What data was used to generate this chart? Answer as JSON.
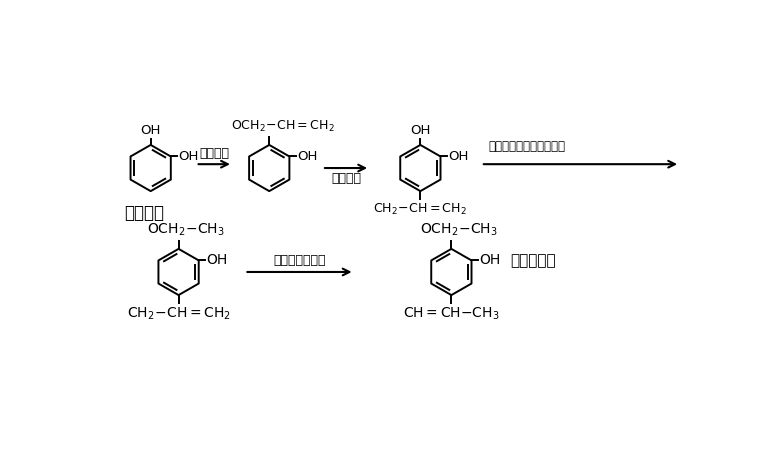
{
  "bg_color": "#ffffff",
  "text_color": "#000000",
  "step1_label": "邻苯二酚",
  "step1_arrow_label": "单烷基化",
  "step2_arrow_label": "重排反应",
  "step3_arrow_label": "乙基硫酸钓进行单乙基化",
  "step4_arrow_label": "氮氧化钒异构化",
  "step5_label": "浓馥香兰素",
  "figsize": [
    7.59,
    4.57
  ],
  "dpi": 100
}
